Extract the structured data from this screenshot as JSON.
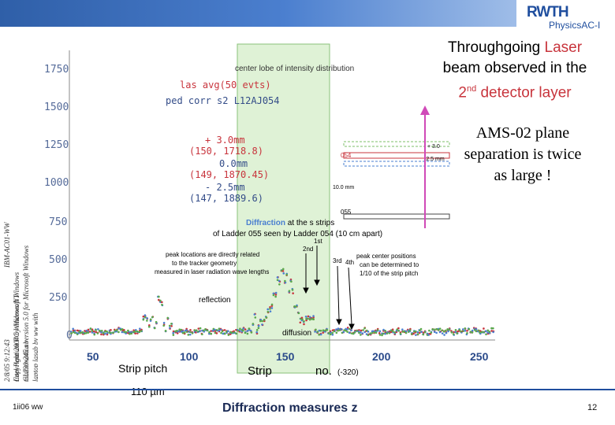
{
  "logo": {
    "main": "RWTH",
    "sub": "PhysicsAC-I"
  },
  "side_text": [
    "2/8/05 9:12:43",
    "Intel Pentium   PC Windows/NT",
    "IBM-AC01-WW",
    "Copyright 2004 by Microsoft Windows",
    "mathematica version 5.0 for Microsoft Windows",
    "laptop lasab by ww with",
    "CL230-245.nb"
  ],
  "title": {
    "line1_pre": "Throughgoing ",
    "line1_accent": "Laser",
    "line2": "beam observed in the",
    "line3_pre": "2",
    "line3_sup": "nd",
    "line3_post": " detector layer"
  },
  "ams_note": {
    "line1": "AMS-02 plane",
    "line2": "separation is twice",
    "line3": "as large !"
  },
  "plot": {
    "y_ticks": [
      "1750",
      "1500",
      "1250",
      "1000",
      "750",
      "500",
      "250",
      "0"
    ],
    "x_ticks": [
      "50",
      "100",
      "150",
      "200",
      "250"
    ],
    "x_label_a": "Strip",
    "x_label_b": "no.",
    "x_label_c": "(-320)",
    "legend1": "las avg(50 evts)",
    "legend2": "ped corr s2 L12AJ054",
    "center_lobe": "center lobe of intensity distribution",
    "ann_plus3": "+ 3.0mm",
    "ann_150": "(150, 1718.8)",
    "ann_0": "0.0mm",
    "ann_149": "(149, 1870.45)",
    "ann_minus25": "- 2.5mm",
    "ann_147": "(147, 1889.6)",
    "diffraction_colored": "Diffraction",
    "diffraction_rest": " at the s strips",
    "diffraction_line2": "of Ladder 055 seen by Ladder 054 (10 cm apart)",
    "peak_left_1": "peak locations are directly related",
    "peak_left_2": "to the tracker geometry",
    "peak_left_3": "measured in laser radiation wave lengths",
    "peak_right_1": "peak center positions",
    "peak_right_2": "can be determined to",
    "peak_right_3": "1/10 of the strip pitch",
    "ord1": "1st",
    "ord2": "2nd",
    "ord3": "3rd",
    "ord4": "4th",
    "reflection": "reflection",
    "diffusion": "diffusion",
    "geom_054": "054",
    "geom_055": "055",
    "geom_30": "+ 3.0",
    "geom_25": "-2.5 mm",
    "geom_10": "10.0 mm"
  },
  "strip_pitch": {
    "label": "Strip pitch",
    "value": "110 µm"
  },
  "footer": {
    "left": "1ii06 ww",
    "center": "Diffraction measures z",
    "right": "12"
  }
}
